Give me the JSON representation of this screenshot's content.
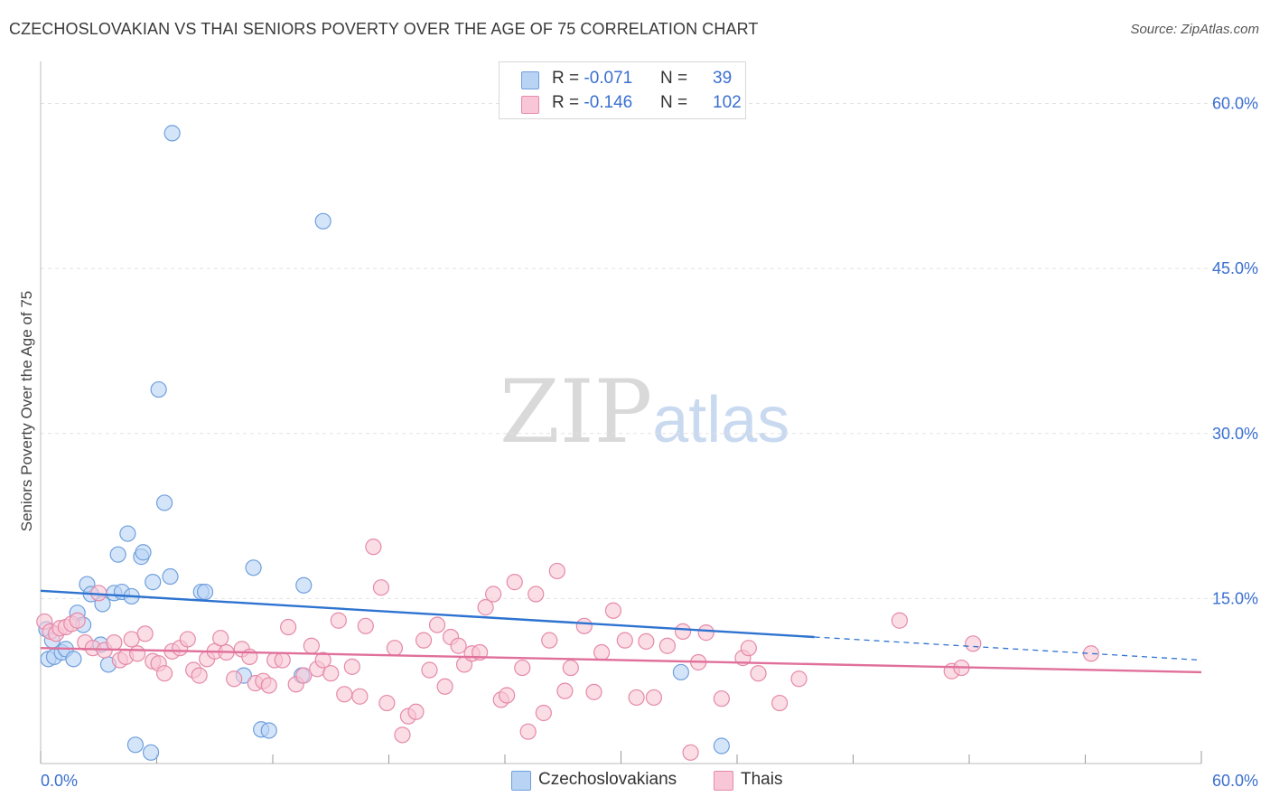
{
  "title": "CZECHOSLOVAKIAN VS THAI SENIORS POVERTY OVER THE AGE OF 75 CORRELATION CHART",
  "source": "Source: ZipAtlas.com",
  "watermark": {
    "zip": "ZIP",
    "atlas": "atlas"
  },
  "legend_top": [
    {
      "r_label": "R = ",
      "r_value": "-0.071",
      "n_label": "N = ",
      "n_value": "39"
    },
    {
      "r_label": "R = ",
      "r_value": "-0.146",
      "n_label": "N = ",
      "n_value": "102"
    }
  ],
  "colors": {
    "czech_fill": "#b9d3f5",
    "czech_stroke": "#6f9fdd",
    "czech_line": "#2e73d0",
    "thai_fill": "#f8c6d6",
    "thai_stroke": "#e58aa8",
    "thai_line": "#e0709a",
    "axis_label": "#3a6fd0",
    "grid": "#e2e2e2"
  },
  "chart_data": {
    "type": "scatter",
    "title": "CZECHOSLOVAKIAN VS THAI SENIORS POVERTY OVER THE AGE OF 75 CORRELATION CHART",
    "xlabel": "",
    "ylabel": "Seniors Poverty Over the Age of 75",
    "xlim": [
      0,
      60
    ],
    "ylim": [
      0,
      63
    ],
    "x_tick_labels": [
      "0.0%",
      "60.0%"
    ],
    "y_ticks": [
      15,
      30,
      45,
      60
    ],
    "y_tick_labels": [
      "15.0%",
      "30.0%",
      "45.0%",
      "60.0%"
    ],
    "legend": [
      "Czechoslovakians",
      "Thais"
    ],
    "series": [
      {
        "name": "Czechoslovakians",
        "r": -0.071,
        "n": 39,
        "trend": {
          "x0": 0,
          "y0": 15.7,
          "x1": 40,
          "y1": 11.5,
          "dashed_to_x": 60,
          "dashed_to_y": 9.4
        },
        "points": [
          [
            0.3,
            12.2
          ],
          [
            0.4,
            9.5
          ],
          [
            0.6,
            11.2
          ],
          [
            0.7,
            9.7
          ],
          [
            1.1,
            10.1
          ],
          [
            1.3,
            10.4
          ],
          [
            1.7,
            9.5
          ],
          [
            1.9,
            13.7
          ],
          [
            2.2,
            12.6
          ],
          [
            2.4,
            16.3
          ],
          [
            2.6,
            15.4
          ],
          [
            3.1,
            10.8
          ],
          [
            3.2,
            14.5
          ],
          [
            3.5,
            9.0
          ],
          [
            3.8,
            15.5
          ],
          [
            4.0,
            19.0
          ],
          [
            4.2,
            15.6
          ],
          [
            4.5,
            20.9
          ],
          [
            4.7,
            15.2
          ],
          [
            4.9,
            1.7
          ],
          [
            5.2,
            18.8
          ],
          [
            5.3,
            19.2
          ],
          [
            5.7,
            1.0
          ],
          [
            5.8,
            16.5
          ],
          [
            6.1,
            34.0
          ],
          [
            6.4,
            23.7
          ],
          [
            6.7,
            17.0
          ],
          [
            6.8,
            57.3
          ],
          [
            8.3,
            15.6
          ],
          [
            8.5,
            15.6
          ],
          [
            10.5,
            8.0
          ],
          [
            11.0,
            17.8
          ],
          [
            11.4,
            3.1
          ],
          [
            11.8,
            3.0
          ],
          [
            13.5,
            8.0
          ],
          [
            13.6,
            16.2
          ],
          [
            14.6,
            49.3
          ],
          [
            33.1,
            8.3
          ],
          [
            35.2,
            1.6
          ]
        ]
      },
      {
        "name": "Thais",
        "r": -0.146,
        "n": 102,
        "trend": {
          "x0": 0,
          "y0": 10.5,
          "x1": 60,
          "y1": 8.3
        },
        "points": [
          [
            0.2,
            12.9
          ],
          [
            0.5,
            12.0
          ],
          [
            0.8,
            11.8
          ],
          [
            1.0,
            12.3
          ],
          [
            1.3,
            12.4
          ],
          [
            1.6,
            12.7
          ],
          [
            1.9,
            13.0
          ],
          [
            2.3,
            11.0
          ],
          [
            2.7,
            10.5
          ],
          [
            3.0,
            15.5
          ],
          [
            3.3,
            10.3
          ],
          [
            3.8,
            11.0
          ],
          [
            4.1,
            9.4
          ],
          [
            4.4,
            9.7
          ],
          [
            4.7,
            11.3
          ],
          [
            5.0,
            10.0
          ],
          [
            5.4,
            11.8
          ],
          [
            5.8,
            9.3
          ],
          [
            6.1,
            9.1
          ],
          [
            6.4,
            8.2
          ],
          [
            6.8,
            10.2
          ],
          [
            7.2,
            10.5
          ],
          [
            7.6,
            11.3
          ],
          [
            7.9,
            8.5
          ],
          [
            8.2,
            8.0
          ],
          [
            8.6,
            9.5
          ],
          [
            9.0,
            10.2
          ],
          [
            9.3,
            11.4
          ],
          [
            9.6,
            10.1
          ],
          [
            10.0,
            7.7
          ],
          [
            10.4,
            10.4
          ],
          [
            10.8,
            9.7
          ],
          [
            11.1,
            7.3
          ],
          [
            11.5,
            7.5
          ],
          [
            11.8,
            7.1
          ],
          [
            12.1,
            9.4
          ],
          [
            12.5,
            9.4
          ],
          [
            12.8,
            12.4
          ],
          [
            13.2,
            7.2
          ],
          [
            13.6,
            8.0
          ],
          [
            14.0,
            10.7
          ],
          [
            14.3,
            8.6
          ],
          [
            14.6,
            9.4
          ],
          [
            15.0,
            8.2
          ],
          [
            15.4,
            13.0
          ],
          [
            15.7,
            6.3
          ],
          [
            16.1,
            8.8
          ],
          [
            16.5,
            6.1
          ],
          [
            16.8,
            12.5
          ],
          [
            17.2,
            19.7
          ],
          [
            17.6,
            16.0
          ],
          [
            17.9,
            5.5
          ],
          [
            18.3,
            10.5
          ],
          [
            18.7,
            2.6
          ],
          [
            19.0,
            4.3
          ],
          [
            19.4,
            4.7
          ],
          [
            19.8,
            11.2
          ],
          [
            20.1,
            8.5
          ],
          [
            20.5,
            12.6
          ],
          [
            20.9,
            7.0
          ],
          [
            21.2,
            11.5
          ],
          [
            21.6,
            10.7
          ],
          [
            21.9,
            9.0
          ],
          [
            22.3,
            10.0
          ],
          [
            22.7,
            10.1
          ],
          [
            23.0,
            14.2
          ],
          [
            23.4,
            15.4
          ],
          [
            23.8,
            5.8
          ],
          [
            24.1,
            6.2
          ],
          [
            24.5,
            16.5
          ],
          [
            24.9,
            8.7
          ],
          [
            25.2,
            2.9
          ],
          [
            25.6,
            15.4
          ],
          [
            26.0,
            4.6
          ],
          [
            26.3,
            11.2
          ],
          [
            26.7,
            17.5
          ],
          [
            27.1,
            6.6
          ],
          [
            27.4,
            8.7
          ],
          [
            28.1,
            12.5
          ],
          [
            28.6,
            6.5
          ],
          [
            29.0,
            10.1
          ],
          [
            29.6,
            13.9
          ],
          [
            30.2,
            11.2
          ],
          [
            30.8,
            6.0
          ],
          [
            31.3,
            11.1
          ],
          [
            31.7,
            6.0
          ],
          [
            32.4,
            10.7
          ],
          [
            33.2,
            12.0
          ],
          [
            33.6,
            1.0
          ],
          [
            34.0,
            9.2
          ],
          [
            34.4,
            11.9
          ],
          [
            35.2,
            5.9
          ],
          [
            36.3,
            9.6
          ],
          [
            36.6,
            10.5
          ],
          [
            37.1,
            8.2
          ],
          [
            38.2,
            5.5
          ],
          [
            39.2,
            7.7
          ],
          [
            44.4,
            13.0
          ],
          [
            47.1,
            8.4
          ],
          [
            47.6,
            8.7
          ],
          [
            48.2,
            10.9
          ],
          [
            54.3,
            10.0
          ]
        ]
      }
    ]
  }
}
